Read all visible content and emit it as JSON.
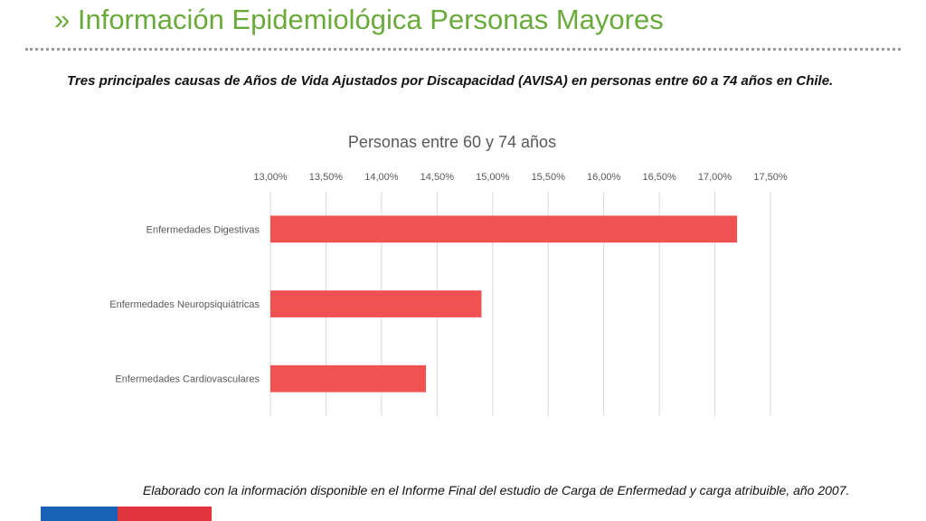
{
  "header": {
    "title": "» Información Epidemiológica Personas Mayores",
    "subtitle": "Tres principales causas de Años de Vida Ajustados por Discapacidad (AVISA) en personas entre 60 a 74 años en Chile."
  },
  "chart_data": {
    "type": "bar",
    "orientation": "horizontal",
    "title": "Personas entre 60 y 74 años",
    "categories": [
      "Enfermedades Digestivas",
      "Enfermedades Neuropsiquiátricas",
      "Enfermedades Cardiovasculares"
    ],
    "values": [
      17.2,
      14.9,
      14.4
    ],
    "xlim": [
      13.0,
      17.5
    ],
    "ticks": [
      "13,00%",
      "13,50%",
      "14,00%",
      "14,50%",
      "15,00%",
      "15,50%",
      "16,00%",
      "16,50%",
      "17,00%",
      "17,50%"
    ],
    "tick_values": [
      13.0,
      13.5,
      14.0,
      14.5,
      15.0,
      15.5,
      16.0,
      16.5,
      17.0,
      17.5
    ],
    "axis_position": "top",
    "grid": true,
    "bar_color": "#f05252"
  },
  "footer": {
    "note": "Elaborado con la información disponible en el Informe Final del estudio de Carga de Enfermedad y carga atribuible, año 2007."
  },
  "colors": {
    "title": "#6aaa3a",
    "flag_blue": "#1a62b5",
    "flag_red": "#e2363f"
  }
}
